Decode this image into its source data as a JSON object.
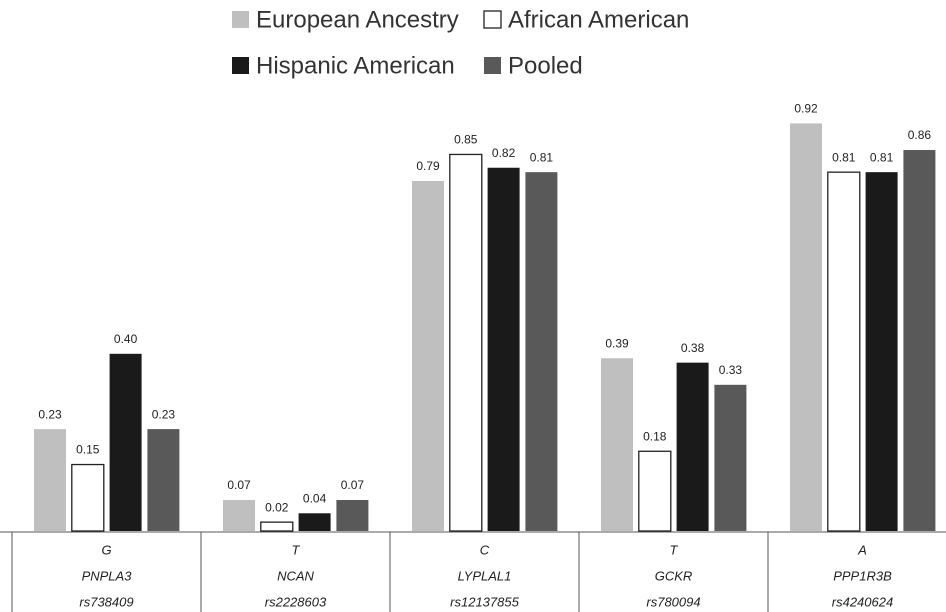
{
  "chart_data": {
    "type": "bar",
    "legend_position": "top",
    "categories": [
      [
        "G",
        "PNPLA3",
        "rs738409"
      ],
      [
        "T",
        "NCAN",
        "rs2228603"
      ],
      [
        "C",
        "LYPLAL1",
        "rs12137855"
      ],
      [
        "T",
        "GCKR",
        "rs780094"
      ],
      [
        "A",
        "PPP1R3B",
        "rs4240624"
      ]
    ],
    "series": [
      {
        "name": "European Ancestry",
        "color": "#bfbfbf",
        "values": [
          0.23,
          0.07,
          0.79,
          0.39,
          0.92
        ],
        "value_labels": [
          "0.23",
          "0.07",
          "0.79",
          "0.39",
          "0.92"
        ]
      },
      {
        "name": "African American",
        "color": "#ffffff",
        "values": [
          0.15,
          0.02,
          0.85,
          0.18,
          0.81
        ],
        "value_labels": [
          "0.15",
          "0.02",
          "0.85",
          "0.18",
          "0.81"
        ]
      },
      {
        "name": "Hispanic American",
        "color": "#1a1a1a",
        "values": [
          0.4,
          0.04,
          0.82,
          0.38,
          0.81
        ],
        "value_labels": [
          "0.40",
          "0.04",
          "0.82",
          "0.38",
          "0.81"
        ]
      },
      {
        "name": "Pooled",
        "color": "#595959",
        "values": [
          0.23,
          0.07,
          0.81,
          0.33,
          0.86
        ],
        "value_labels": [
          "0.23",
          "0.07",
          "0.81",
          "0.33",
          "0.86"
        ]
      }
    ],
    "ylim": [
      0,
      1
    ]
  }
}
